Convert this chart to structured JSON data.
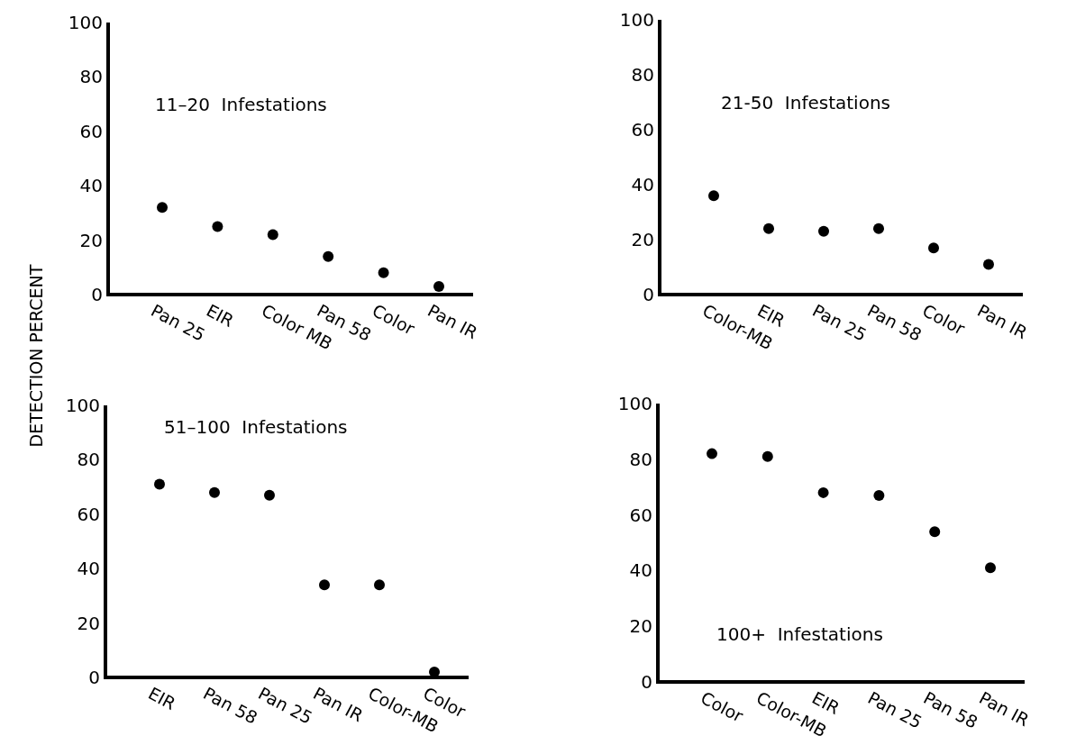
{
  "chart_data": [
    {
      "type": "scatter",
      "title": "11–20  Infestations",
      "ylabel": "DETECTION PERCENT",
      "categories": [
        "Pan 25",
        "EIR",
        "Color MB",
        "Pan 58",
        "Color",
        "Pan IR"
      ],
      "values": [
        32,
        25,
        22,
        14,
        8,
        3
      ],
      "color": "#000000",
      "marker": "circle",
      "ylim": [
        0,
        100
      ],
      "yticks": [
        0,
        20,
        40,
        60,
        80,
        100
      ]
    },
    {
      "type": "scatter",
      "title": "21-50  Infestations",
      "categories": [
        "Color-MB",
        "EIR",
        "Pan 25",
        "Pan 58",
        "Color",
        "Pan IR"
      ],
      "values": [
        36,
        24,
        23,
        24,
        17,
        11
      ],
      "color": "#000000",
      "marker": "circle",
      "ylim": [
        0,
        100
      ],
      "yticks": [
        0,
        20,
        40,
        60,
        80,
        100
      ]
    },
    {
      "type": "scatter",
      "title": "51–100  Infestations",
      "categories": [
        "EIR",
        "Pan 58",
        "Pan 25",
        "Pan IR",
        "Color-MB",
        "Color"
      ],
      "values": [
        71,
        68,
        67,
        34,
        34,
        2
      ],
      "color": "#000000",
      "marker": "circle",
      "ylim": [
        0,
        100
      ],
      "yticks": [
        0,
        20,
        40,
        60,
        80,
        100
      ]
    },
    {
      "type": "scatter",
      "title": "100+  Infestations",
      "categories": [
        "Color",
        "Color-MB",
        "EIR",
        "Pan 25",
        "Pan 58",
        "Pan IR"
      ],
      "values": [
        82,
        81,
        68,
        67,
        54,
        41
      ],
      "color": "#000000",
      "marker": "circle",
      "ylim": [
        0,
        100
      ],
      "yticks": [
        0,
        20,
        40,
        60,
        80,
        100
      ]
    }
  ]
}
